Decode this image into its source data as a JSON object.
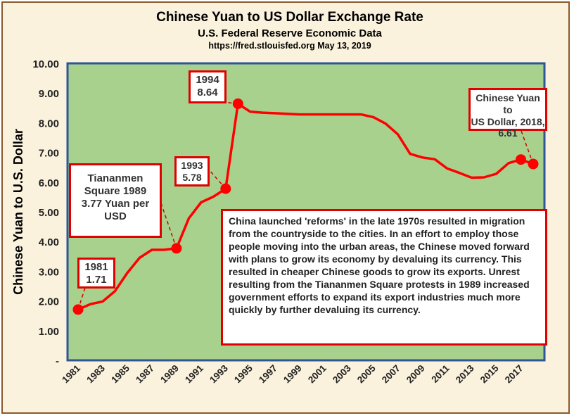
{
  "chart_data": {
    "type": "line",
    "title": "Chinese Yuan to US Dollar Exchange Rate",
    "subtitle": "U.S. Federal Reserve Economic Data",
    "source": "https://fred.stlouisfed.org May 13, 2019",
    "ylabel": "Chinese Yuan to U.S. Dollar",
    "xlabel": "",
    "ylim": [
      0,
      10
    ],
    "xlim": [
      1981,
      2018
    ],
    "grid": false,
    "y_tick_labels": [
      "-",
      "1.00",
      "2.00",
      "3.00",
      "4.00",
      "5.00",
      "6.00",
      "7.00",
      "8.00",
      "9.00",
      "10.00"
    ],
    "x_tick_labels": [
      "1981",
      "1983",
      "1985",
      "1987",
      "1989",
      "1991",
      "1993",
      "1995",
      "1997",
      "1999",
      "2001",
      "2003",
      "2005",
      "2007",
      "2009",
      "2011",
      "2013",
      "2015",
      "2017"
    ],
    "x": [
      1981,
      1982,
      1983,
      1984,
      1985,
      1986,
      1987,
      1988,
      1989,
      1990,
      1991,
      1992,
      1993,
      1994,
      1995,
      1996,
      1997,
      1998,
      1999,
      2000,
      2001,
      2002,
      2003,
      2004,
      2005,
      2006,
      2007,
      2008,
      2009,
      2010,
      2011,
      2012,
      2013,
      2014,
      2015,
      2016,
      2017,
      2018
    ],
    "series": [
      {
        "values": [
          1.71,
          1.89,
          1.98,
          2.33,
          2.94,
          3.45,
          3.72,
          3.72,
          3.77,
          4.78,
          5.32,
          5.51,
          5.78,
          8.64,
          8.37,
          8.34,
          8.32,
          8.3,
          8.28,
          8.28,
          8.28,
          8.28,
          8.28,
          8.28,
          8.19,
          7.97,
          7.61,
          6.95,
          6.83,
          6.77,
          6.46,
          6.31,
          6.15,
          6.16,
          6.28,
          6.64,
          6.76,
          6.61
        ],
        "highlighted": [
          1981,
          1989,
          1993,
          1994,
          2017,
          2018
        ]
      }
    ],
    "colors": {
      "line": "#ff0000",
      "plot_background": "#a9d18e",
      "plot_border": "#2f5597",
      "frame_background": "#fbf2dd",
      "frame_border": "#8a5a2b",
      "callout_border": "#e00000"
    }
  },
  "annotations": {
    "note_1981": [
      "1981",
      "1.71"
    ],
    "note_1989": [
      "Tiananmen",
      "Square 1989",
      "3.77 Yuan per",
      "USD"
    ],
    "note_1993": [
      "1993",
      "5.78"
    ],
    "note_1994": [
      "1994",
      "8.64"
    ],
    "note_2018": [
      "Chinese Yuan to",
      "US Dollar, 2018,",
      "6.61"
    ],
    "main_note": "China launched 'reforms' in the late 1970s resulted in migration from the countryside to the cities. In an effort to employ those people moving into the urban areas, the Chinese moved forward with plans to grow its economy by devaluing its currency. This resulted in cheaper Chinese goods to grow its exports. Unrest resulting from the Tiananmen Square protests in 1989 increased government efforts to expand its export industries much more quickly by further devaluing its currency."
  }
}
